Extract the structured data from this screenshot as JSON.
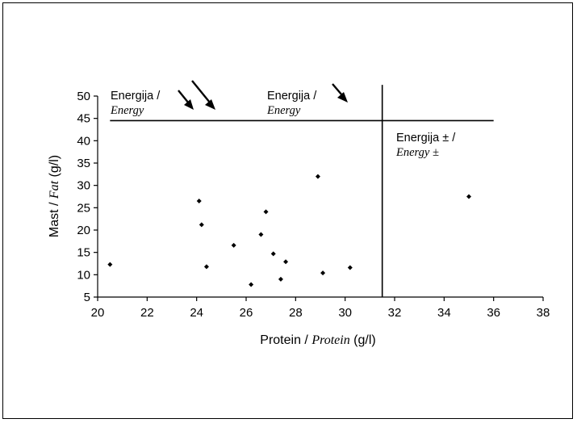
{
  "chart_data": {
    "type": "scatter",
    "xlabel": {
      "plain": "Protein / ",
      "italic": "Protein",
      "unit": " (g/l)"
    },
    "ylabel": {
      "plain": "Mast / ",
      "italic": "Fat",
      "unit": " (g/l)"
    },
    "xlim": [
      20,
      38
    ],
    "ylim": [
      5,
      50
    ],
    "xticks": [
      "20",
      "22",
      "24",
      "26",
      "28",
      "30",
      "32",
      "34",
      "36",
      "38"
    ],
    "yticks": [
      "5",
      "10",
      "15",
      "20",
      "25",
      "30",
      "35",
      "40",
      "45",
      "50"
    ],
    "points": [
      {
        "x": 20.5,
        "y": 12.3
      },
      {
        "x": 24.1,
        "y": 26.5
      },
      {
        "x": 24.2,
        "y": 21.2
      },
      {
        "x": 24.4,
        "y": 11.8
      },
      {
        "x": 25.5,
        "y": 16.6
      },
      {
        "x": 26.2,
        "y": 7.8
      },
      {
        "x": 26.6,
        "y": 19.0
      },
      {
        "x": 26.8,
        "y": 24.1
      },
      {
        "x": 27.1,
        "y": 14.7
      },
      {
        "x": 27.4,
        "y": 9.0
      },
      {
        "x": 27.6,
        "y": 12.9
      },
      {
        "x": 28.9,
        "y": 32.0
      },
      {
        "x": 29.1,
        "y": 10.4
      },
      {
        "x": 30.2,
        "y": 11.6
      },
      {
        "x": 35.0,
        "y": 27.5
      }
    ],
    "reference_lines": {
      "horizontal": {
        "y": 44.5,
        "x_from": 20.5,
        "x_to": 36.0
      },
      "vertical": {
        "x": 31.5,
        "y_from": 5,
        "y_to": 52.5
      }
    },
    "annotations": [
      {
        "line1": "Energija /",
        "line2": "Energy",
        "arrows": 2
      },
      {
        "line1": "Energija /",
        "line2": "Energy",
        "arrows": 1
      },
      {
        "line1": "Energija ± /",
        "line2": "Energy ±",
        "arrows": 0
      }
    ]
  }
}
